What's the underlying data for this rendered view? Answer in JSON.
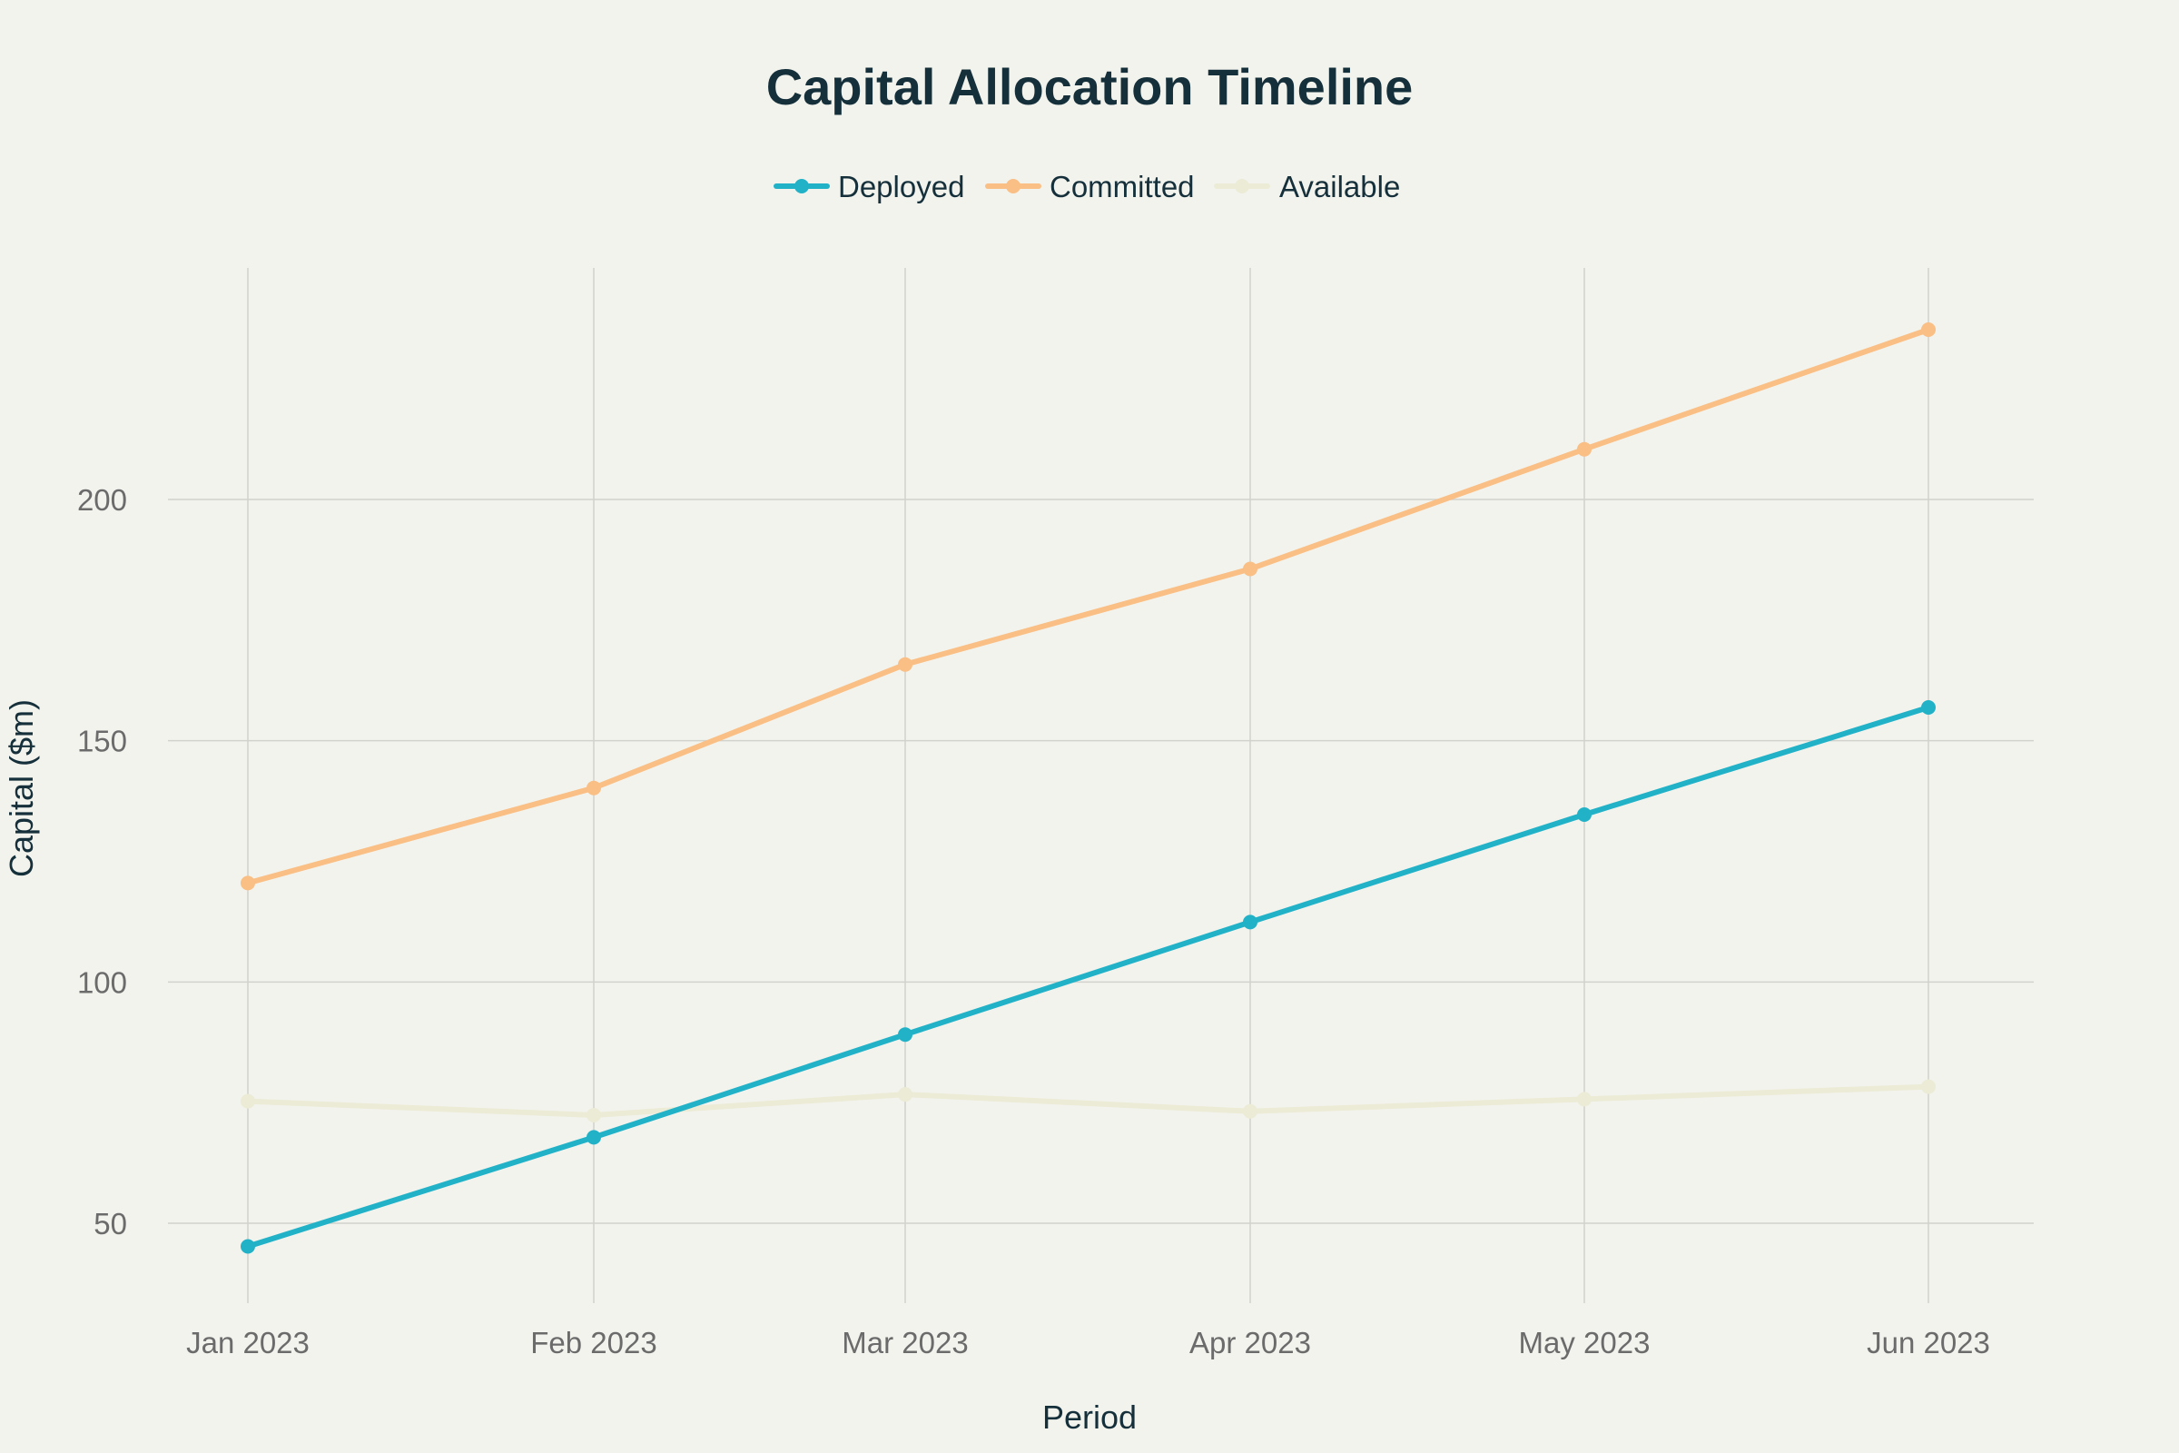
{
  "chart_data": {
    "type": "line",
    "title": "Capital Allocation Timeline",
    "xlabel": "Period",
    "ylabel": "Capital ($m)",
    "categories": [
      "Jan 2023",
      "Feb 2023",
      "Mar 2023",
      "Apr 2023",
      "May 2023",
      "Jun 2023"
    ],
    "series": [
      {
        "name": "Deployed",
        "color": "#22b2c8",
        "values": [
          45.2,
          67.8,
          89.1,
          112.4,
          134.7,
          156.9
        ]
      },
      {
        "name": "Committed",
        "color": "#f9bf85",
        "values": [
          120.5,
          140.2,
          165.8,
          185.6,
          210.4,
          235.2
        ]
      },
      {
        "name": "Available",
        "color": "#ecebd6",
        "values": [
          75.3,
          72.4,
          76.7,
          73.2,
          75.7,
          78.3
        ]
      }
    ],
    "yticks": [
      50,
      100,
      150,
      200
    ],
    "ylim": [
      35,
      250
    ],
    "grid": true,
    "legend_position": "top-center"
  }
}
